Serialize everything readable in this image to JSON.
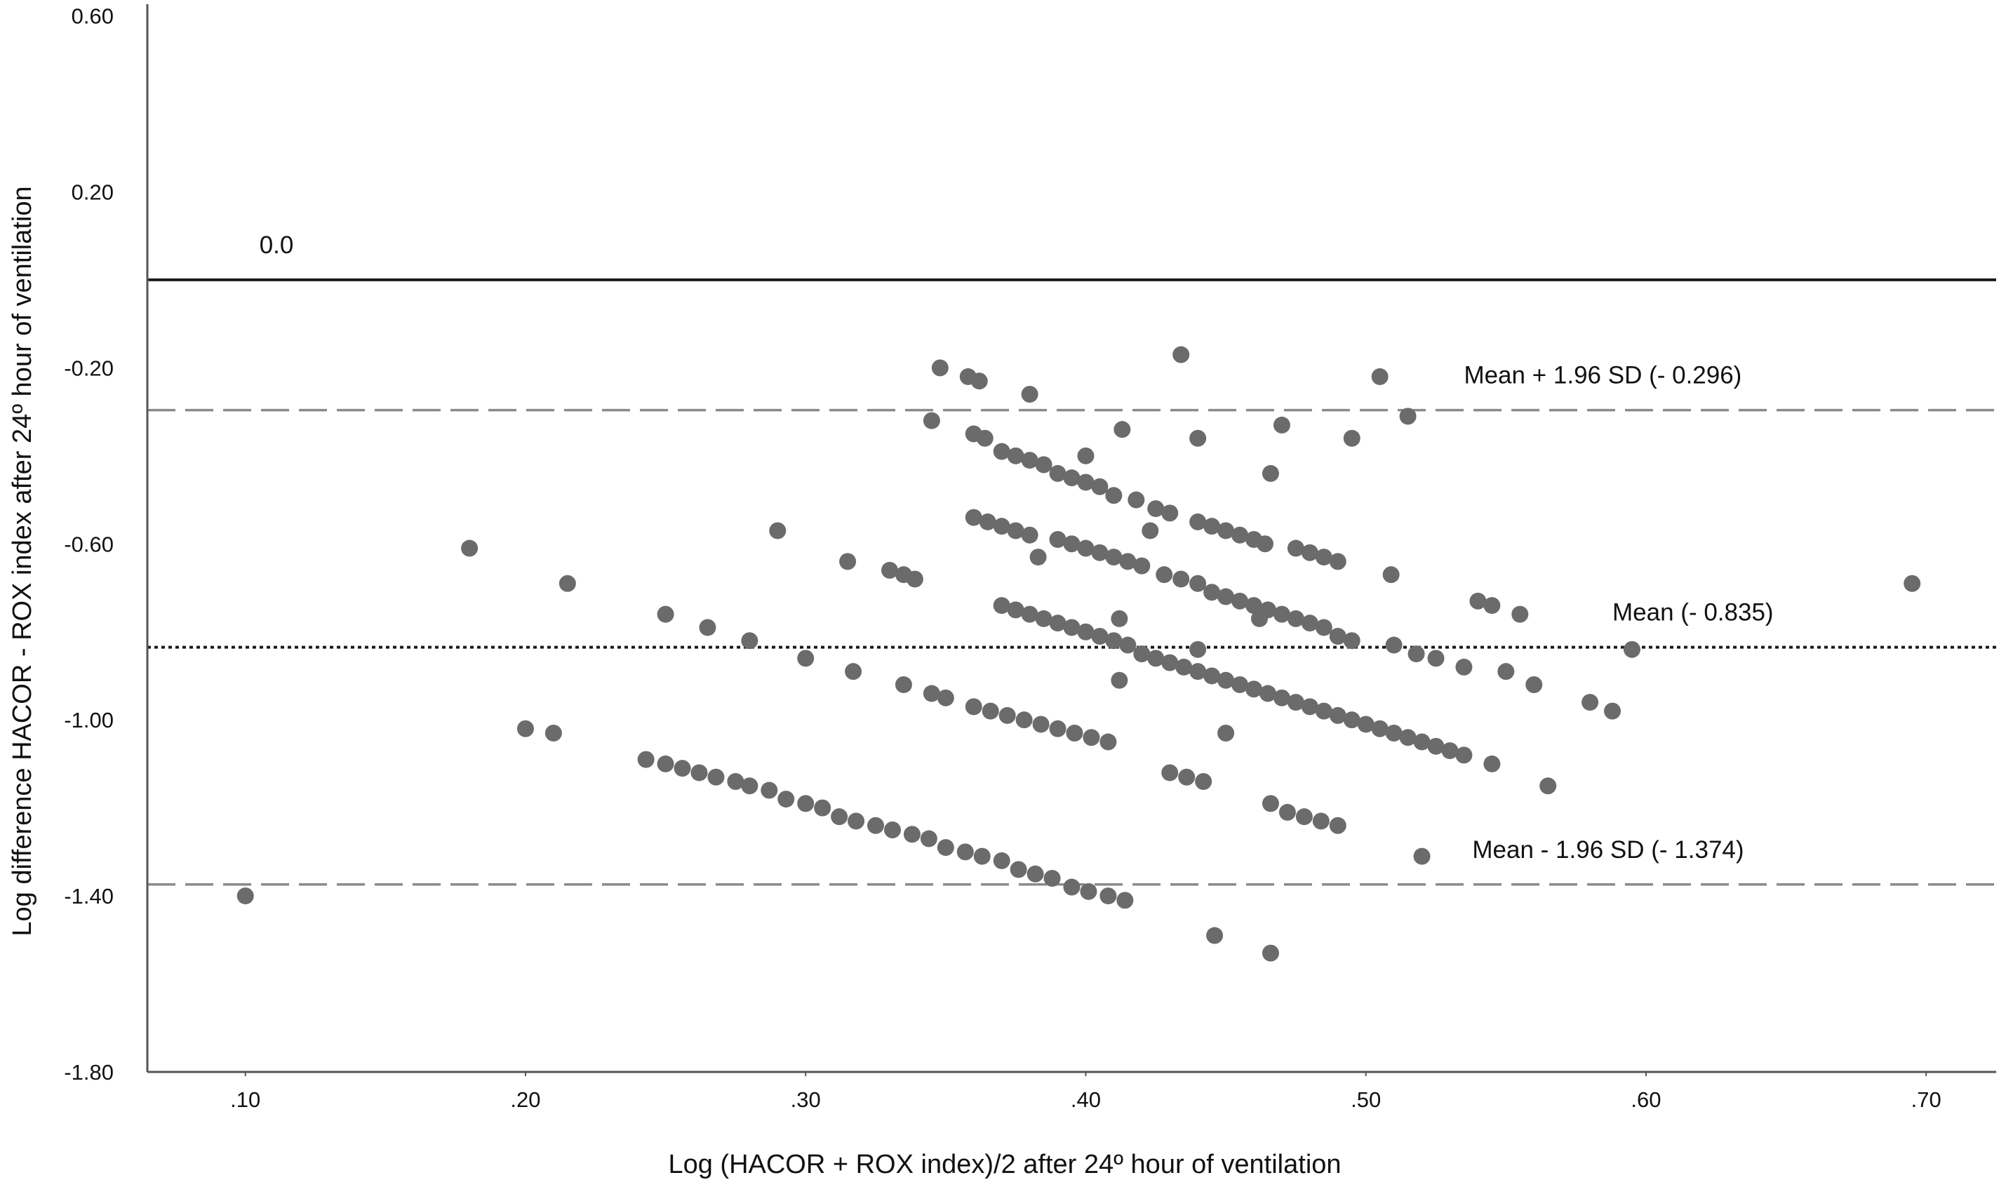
{
  "chart_data": {
    "type": "scatter",
    "xlabel": "Log (HACOR + ROX index)/2 after 24º hour of ventilation",
    "ylabel": "Log difference HACOR - ROX index after 24º hour of ventilation",
    "xlim": [
      0.065,
      0.725
    ],
    "ylim": [
      -1.8,
      0.62
    ],
    "x_ticks": [
      {
        "value": 0.1,
        "label": ".10"
      },
      {
        "value": 0.2,
        "label": ".20"
      },
      {
        "value": 0.3,
        "label": ".30"
      },
      {
        "value": 0.4,
        "label": ".40"
      },
      {
        "value": 0.5,
        "label": ".50"
      },
      {
        "value": 0.6,
        "label": ".60"
      },
      {
        "value": 0.7,
        "label": ".70"
      }
    ],
    "y_ticks": [
      {
        "value": 0.6,
        "label": "0.60"
      },
      {
        "value": 0.2,
        "label": "0.20"
      },
      {
        "value": -0.2,
        "label": "-0.20"
      },
      {
        "value": -0.6,
        "label": "-0.60"
      },
      {
        "value": -1.0,
        "label": "-1.00"
      },
      {
        "value": -1.4,
        "label": "-1.40"
      },
      {
        "value": -1.8,
        "label": "-1.80"
      }
    ],
    "grid": false,
    "point_color": "#6b6b6b",
    "reference_lines": [
      {
        "value": 0.0,
        "style": "solid",
        "label": "0.0",
        "label_x": 0.105
      },
      {
        "value": -0.296,
        "style": "dashed",
        "label": "Mean + 1.96 SD (- 0.296)",
        "label_x": 0.535
      },
      {
        "value": -0.835,
        "style": "dotted",
        "label": "Mean (- 0.835)",
        "label_x": 0.588
      },
      {
        "value": -1.374,
        "style": "dashed",
        "label": "Mean - 1.96 SD (- 1.374)",
        "label_x": 0.538
      }
    ],
    "points": [
      [
        0.1,
        -1.4
      ],
      [
        0.18,
        -0.61
      ],
      [
        0.215,
        -0.69
      ],
      [
        0.2,
        -1.02
      ],
      [
        0.21,
        -1.03
      ],
      [
        0.25,
        -0.76
      ],
      [
        0.265,
        -0.79
      ],
      [
        0.28,
        -0.82
      ],
      [
        0.29,
        -0.57
      ],
      [
        0.3,
        -0.86
      ],
      [
        0.315,
        -0.64
      ],
      [
        0.317,
        -0.89
      ],
      [
        0.33,
        -0.66
      ],
      [
        0.335,
        -0.67
      ],
      [
        0.339,
        -0.68
      ],
      [
        0.335,
        -0.92
      ],
      [
        0.345,
        -0.94
      ],
      [
        0.35,
        -0.95
      ],
      [
        0.345,
        -0.32
      ],
      [
        0.348,
        -0.2
      ],
      [
        0.358,
        -0.22
      ],
      [
        0.362,
        -0.23
      ],
      [
        0.36,
        -0.35
      ],
      [
        0.364,
        -0.36
      ],
      [
        0.37,
        -0.39
      ],
      [
        0.375,
        -0.4
      ],
      [
        0.38,
        -0.26
      ],
      [
        0.38,
        -0.41
      ],
      [
        0.385,
        -0.42
      ],
      [
        0.39,
        -0.44
      ],
      [
        0.395,
        -0.45
      ],
      [
        0.4,
        -0.4
      ],
      [
        0.4,
        -0.46
      ],
      [
        0.405,
        -0.47
      ],
      [
        0.41,
        -0.49
      ],
      [
        0.413,
        -0.34
      ],
      [
        0.418,
        -0.5
      ],
      [
        0.425,
        -0.52
      ],
      [
        0.43,
        -0.53
      ],
      [
        0.434,
        -0.17
      ],
      [
        0.44,
        -0.36
      ],
      [
        0.44,
        -0.55
      ],
      [
        0.445,
        -0.56
      ],
      [
        0.45,
        -0.57
      ],
      [
        0.455,
        -0.58
      ],
      [
        0.46,
        -0.59
      ],
      [
        0.464,
        -0.6
      ],
      [
        0.466,
        -0.44
      ],
      [
        0.47,
        -0.33
      ],
      [
        0.475,
        -0.61
      ],
      [
        0.48,
        -0.62
      ],
      [
        0.485,
        -0.63
      ],
      [
        0.49,
        -0.64
      ],
      [
        0.495,
        -0.36
      ],
      [
        0.505,
        -0.22
      ],
      [
        0.509,
        -0.67
      ],
      [
        0.515,
        -0.31
      ],
      [
        0.36,
        -0.54
      ],
      [
        0.365,
        -0.55
      ],
      [
        0.37,
        -0.56
      ],
      [
        0.375,
        -0.57
      ],
      [
        0.38,
        -0.58
      ],
      [
        0.383,
        -0.63
      ],
      [
        0.39,
        -0.59
      ],
      [
        0.395,
        -0.6
      ],
      [
        0.4,
        -0.61
      ],
      [
        0.405,
        -0.62
      ],
      [
        0.41,
        -0.63
      ],
      [
        0.415,
        -0.64
      ],
      [
        0.42,
        -0.65
      ],
      [
        0.423,
        -0.57
      ],
      [
        0.428,
        -0.67
      ],
      [
        0.434,
        -0.68
      ],
      [
        0.44,
        -0.69
      ],
      [
        0.445,
        -0.71
      ],
      [
        0.45,
        -0.72
      ],
      [
        0.455,
        -0.73
      ],
      [
        0.46,
        -0.74
      ],
      [
        0.465,
        -0.75
      ],
      [
        0.47,
        -0.76
      ],
      [
        0.475,
        -0.77
      ],
      [
        0.48,
        -0.78
      ],
      [
        0.485,
        -0.79
      ],
      [
        0.49,
        -0.81
      ],
      [
        0.495,
        -0.82
      ],
      [
        0.462,
        -0.77
      ],
      [
        0.44,
        -0.84
      ],
      [
        0.37,
        -0.74
      ],
      [
        0.375,
        -0.75
      ],
      [
        0.38,
        -0.76
      ],
      [
        0.385,
        -0.77
      ],
      [
        0.39,
        -0.78
      ],
      [
        0.395,
        -0.79
      ],
      [
        0.4,
        -0.8
      ],
      [
        0.405,
        -0.81
      ],
      [
        0.41,
        -0.82
      ],
      [
        0.415,
        -0.83
      ],
      [
        0.42,
        -0.85
      ],
      [
        0.425,
        -0.86
      ],
      [
        0.43,
        -0.87
      ],
      [
        0.435,
        -0.88
      ],
      [
        0.44,
        -0.89
      ],
      [
        0.445,
        -0.9
      ],
      [
        0.45,
        -0.91
      ],
      [
        0.455,
        -0.92
      ],
      [
        0.46,
        -0.93
      ],
      [
        0.465,
        -0.94
      ],
      [
        0.47,
        -0.95
      ],
      [
        0.475,
        -0.96
      ],
      [
        0.48,
        -0.97
      ],
      [
        0.485,
        -0.98
      ],
      [
        0.49,
        -0.99
      ],
      [
        0.495,
        -1.0
      ],
      [
        0.5,
        -1.01
      ],
      [
        0.505,
        -1.02
      ],
      [
        0.51,
        -1.03
      ],
      [
        0.515,
        -1.04
      ],
      [
        0.52,
        -1.05
      ],
      [
        0.525,
        -1.06
      ],
      [
        0.53,
        -1.07
      ],
      [
        0.535,
        -1.08
      ],
      [
        0.412,
        -0.77
      ],
      [
        0.51,
        -0.83
      ],
      [
        0.518,
        -0.85
      ],
      [
        0.525,
        -0.86
      ],
      [
        0.535,
        -0.88
      ],
      [
        0.54,
        -0.73
      ],
      [
        0.545,
        -0.74
      ],
      [
        0.55,
        -0.89
      ],
      [
        0.555,
        -0.76
      ],
      [
        0.56,
        -0.92
      ],
      [
        0.545,
        -1.1
      ],
      [
        0.565,
        -1.15
      ],
      [
        0.58,
        -0.96
      ],
      [
        0.588,
        -0.98
      ],
      [
        0.595,
        -0.84
      ],
      [
        0.695,
        -0.69
      ],
      [
        0.243,
        -1.09
      ],
      [
        0.25,
        -1.1
      ],
      [
        0.256,
        -1.11
      ],
      [
        0.262,
        -1.12
      ],
      [
        0.268,
        -1.13
      ],
      [
        0.275,
        -1.14
      ],
      [
        0.28,
        -1.15
      ],
      [
        0.287,
        -1.16
      ],
      [
        0.293,
        -1.18
      ],
      [
        0.3,
        -1.19
      ],
      [
        0.306,
        -1.2
      ],
      [
        0.312,
        -1.22
      ],
      [
        0.318,
        -1.23
      ],
      [
        0.325,
        -1.24
      ],
      [
        0.331,
        -1.25
      ],
      [
        0.338,
        -1.26
      ],
      [
        0.344,
        -1.27
      ],
      [
        0.35,
        -1.29
      ],
      [
        0.357,
        -1.3
      ],
      [
        0.363,
        -1.31
      ],
      [
        0.37,
        -1.32
      ],
      [
        0.376,
        -1.34
      ],
      [
        0.382,
        -1.35
      ],
      [
        0.388,
        -1.36
      ],
      [
        0.395,
        -1.38
      ],
      [
        0.401,
        -1.39
      ],
      [
        0.408,
        -1.4
      ],
      [
        0.414,
        -1.41
      ],
      [
        0.36,
        -0.97
      ],
      [
        0.366,
        -0.98
      ],
      [
        0.372,
        -0.99
      ],
      [
        0.378,
        -1.0
      ],
      [
        0.384,
        -1.01
      ],
      [
        0.39,
        -1.02
      ],
      [
        0.396,
        -1.03
      ],
      [
        0.402,
        -1.04
      ],
      [
        0.408,
        -1.05
      ],
      [
        0.412,
        -0.91
      ],
      [
        0.43,
        -1.12
      ],
      [
        0.436,
        -1.13
      ],
      [
        0.442,
        -1.14
      ],
      [
        0.45,
        -1.03
      ],
      [
        0.466,
        -1.19
      ],
      [
        0.472,
        -1.21
      ],
      [
        0.478,
        -1.22
      ],
      [
        0.484,
        -1.23
      ],
      [
        0.49,
        -1.24
      ],
      [
        0.52,
        -1.31
      ],
      [
        0.446,
        -1.49
      ],
      [
        0.466,
        -1.53
      ]
    ]
  }
}
